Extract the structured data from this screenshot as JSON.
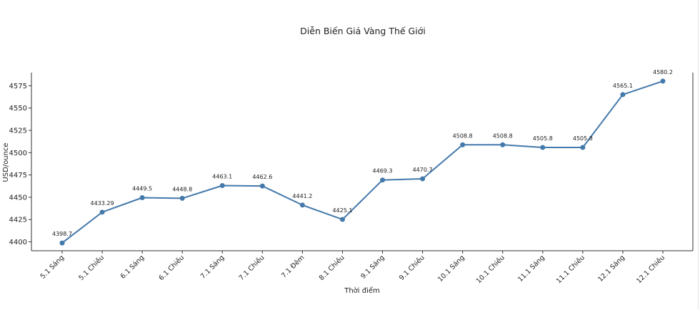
{
  "chart_data": {
    "type": "line",
    "title": "Diễn Biến Giá Vàng Thế Giới",
    "xlabel": "Thời điểm",
    "ylabel": "USD/ounce",
    "categories": [
      "5.1 Sáng",
      "5.1 Chiều",
      "6.1 Sáng",
      "6.1 Chiều",
      "7.1 Sáng",
      "7.1 Chiều",
      "7.1 Đêm",
      "8.1 Chiều",
      "9.1 Sáng",
      "9.1 Chiều",
      "10.1 Sáng",
      "10.1 Chiều",
      "11.1 Sáng",
      "11.1 Chiều",
      "12.1 Sáng",
      "12.1 Chiều"
    ],
    "values": [
      4398.7,
      4433.29,
      4449.5,
      4448.8,
      4463.1,
      4462.6,
      4441.2,
      4425.1,
      4469.3,
      4470.7,
      4508.8,
      4508.8,
      4505.8,
      4505.8,
      4565.1,
      4580.2
    ],
    "data_labels": [
      "4398.7",
      "4433.29",
      "4449.5",
      "4448.8",
      "4463.1",
      "4462.6",
      "4441.2",
      "4425.1",
      "4469.3",
      "4470.7",
      "4508.8",
      "4508.8",
      "4505.8",
      "4505.8",
      "4565.1",
      "4580.2"
    ],
    "yticks": [
      4400,
      4425,
      4450,
      4475,
      4500,
      4525,
      4550,
      4575
    ],
    "ylim": [
      4389.4,
      4589.5
    ],
    "grid": false,
    "legend": null,
    "line_color": "#4379ab",
    "marker": "circle"
  }
}
